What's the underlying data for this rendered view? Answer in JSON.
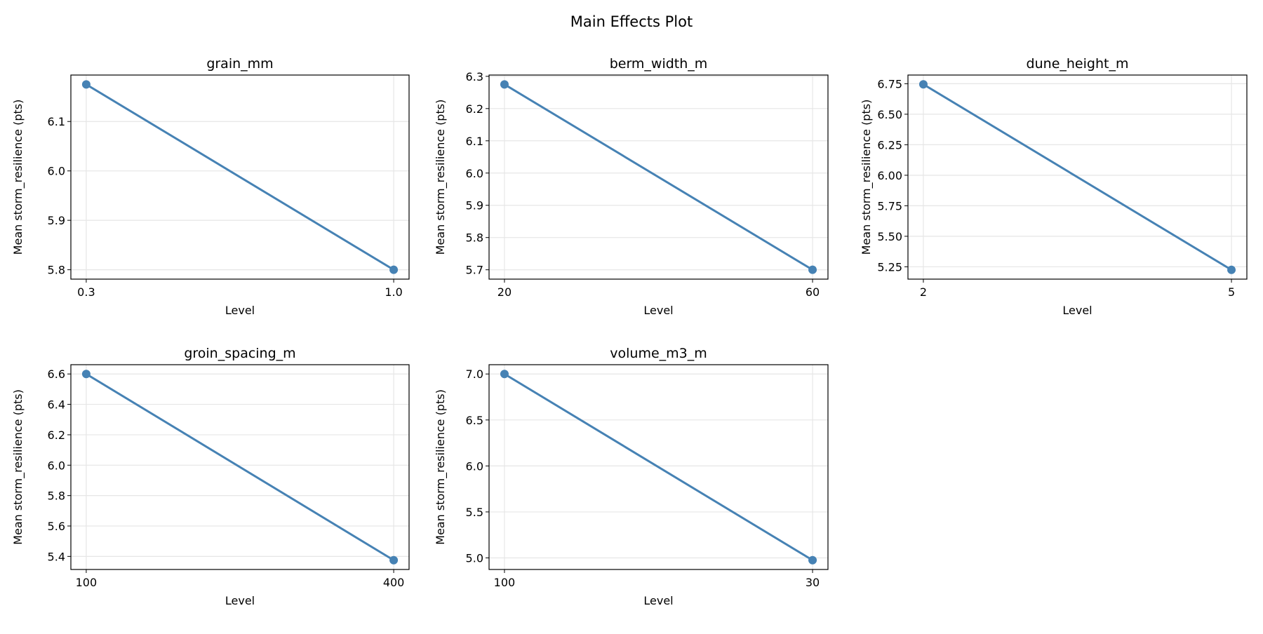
{
  "figure_title": "Main Effects Plot",
  "colors": {
    "line": "#4682b4",
    "grid": "#e6e6e6",
    "axes": "#000000"
  },
  "chart_data": [
    {
      "type": "line",
      "title": "grain_mm",
      "xlabel": "Level",
      "ylabel": "Mean storm_resilience (pts)",
      "categories": [
        "0.3",
        "1.0"
      ],
      "values": [
        6.175,
        5.8
      ],
      "ylim": [
        5.781,
        6.194
      ],
      "yticks": [
        5.8,
        5.9,
        6.0,
        6.1
      ],
      "ytick_labels": [
        "5.8",
        "5.9",
        "6.0",
        "6.1"
      ],
      "grid": true
    },
    {
      "type": "line",
      "title": "berm_width_m",
      "xlabel": "Level",
      "ylabel": "Mean storm_resilience (pts)",
      "categories": [
        "20",
        "60"
      ],
      "values": [
        6.275,
        5.7
      ],
      "ylim": [
        5.671,
        6.304
      ],
      "yticks": [
        5.7,
        5.8,
        5.9,
        6.0,
        6.1,
        6.2,
        6.3
      ],
      "ytick_labels": [
        "5.7",
        "5.8",
        "5.9",
        "6.0",
        "6.1",
        "6.2",
        "6.3"
      ],
      "grid": true
    },
    {
      "type": "line",
      "title": "dune_height_m",
      "xlabel": "Level",
      "ylabel": "Mean storm_resilience (pts)",
      "categories": [
        "2",
        "5"
      ],
      "values": [
        6.745,
        5.225
      ],
      "ylim": [
        5.149,
        6.821
      ],
      "yticks": [
        5.25,
        5.5,
        5.75,
        6.0,
        6.25,
        6.5,
        6.75
      ],
      "ytick_labels": [
        "5.25",
        "5.50",
        "5.75",
        "6.00",
        "6.25",
        "6.50",
        "6.75"
      ],
      "grid": true
    },
    {
      "type": "line",
      "title": "groin_spacing_m",
      "xlabel": "Level",
      "ylabel": "Mean storm_resilience (pts)",
      "categories": [
        "100",
        "400"
      ],
      "values": [
        6.6,
        5.375
      ],
      "ylim": [
        5.314,
        6.661
      ],
      "yticks": [
        5.4,
        5.6,
        5.8,
        6.0,
        6.2,
        6.4,
        6.6
      ],
      "ytick_labels": [
        "5.4",
        "5.6",
        "5.8",
        "6.0",
        "6.2",
        "6.4",
        "6.6"
      ],
      "grid": true
    },
    {
      "type": "line",
      "title": "volume_m3_m",
      "xlabel": "Level",
      "ylabel": "Mean storm_resilience (pts)",
      "categories": [
        "100",
        "30"
      ],
      "values": [
        7.0,
        4.975
      ],
      "ylim": [
        4.874,
        7.101
      ],
      "yticks": [
        5.0,
        5.5,
        6.0,
        6.5,
        7.0
      ],
      "ytick_labels": [
        "5.0",
        "5.5",
        "6.0",
        "6.5",
        "7.0"
      ],
      "grid": true
    }
  ]
}
